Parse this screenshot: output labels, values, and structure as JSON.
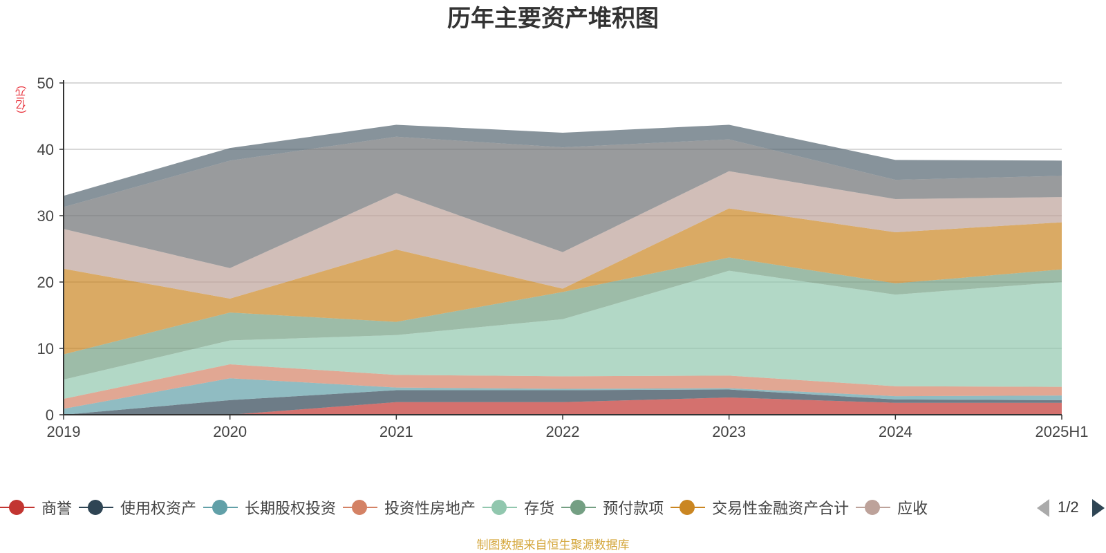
{
  "chart_data": {
    "type": "area",
    "title": "历年主要资产堆积图",
    "unit_label": "(亿元)",
    "categories": [
      "2019",
      "2020",
      "2021",
      "2022",
      "2023",
      "2024",
      "2025H1"
    ],
    "ylim": [
      0,
      50
    ],
    "yticks": [
      0,
      10,
      20,
      30,
      40,
      50
    ],
    "grid": true,
    "stacked": true,
    "series": [
      {
        "name": "商誉",
        "color": "#c23531",
        "values": [
          0,
          0,
          1.9,
          1.9,
          2.6,
          1.8,
          1.8
        ]
      },
      {
        "name": "使用权资产",
        "color": "#2f4554",
        "values": [
          0,
          2.2,
          1.8,
          1.8,
          1.2,
          0.5,
          0.4
        ]
      },
      {
        "name": "长期股权投资",
        "color": "#61a0a8",
        "values": [
          0.9,
          3.3,
          0.4,
          0.2,
          0.2,
          0.5,
          0.7
        ]
      },
      {
        "name": "投资性房地产",
        "color": "#d48265",
        "values": [
          1.5,
          2.1,
          1.9,
          1.9,
          1.9,
          1.5,
          1.3
        ]
      },
      {
        "name": "存货",
        "color": "#91c7ae",
        "values": [
          2.9,
          3.6,
          6.0,
          8.6,
          15.8,
          13.8,
          15.8
        ]
      },
      {
        "name": "预付款项",
        "color": "#749f83",
        "values": [
          3.8,
          4.2,
          2.0,
          4.1,
          2.0,
          1.7,
          1.9
        ]
      },
      {
        "name": "交易性金融资产合计",
        "color": "#ca8622",
        "values": [
          12.9,
          2.1,
          10.9,
          0.5,
          7.4,
          7.7,
          7.1
        ]
      },
      {
        "name": "应收",
        "color": "#bda29a",
        "values": [
          6.0,
          4.6,
          8.5,
          5.5,
          5.6,
          5.0,
          3.8
        ]
      },
      {
        "name": "",
        "color": "#6e7074",
        "values": [
          3.3,
          16.2,
          8.5,
          15.8,
          4.8,
          2.9,
          3.2
        ]
      },
      {
        "name": "",
        "color": "#546570",
        "values": [
          1.7,
          1.9,
          1.8,
          2.2,
          2.2,
          3.0,
          2.3
        ]
      }
    ]
  },
  "legend": {
    "items": [
      {
        "label": "商誉",
        "color": "#c23531"
      },
      {
        "label": "使用权资产",
        "color": "#2f4554"
      },
      {
        "label": "长期股权投资",
        "color": "#61a0a8"
      },
      {
        "label": "投资性房地产",
        "color": "#d48265"
      },
      {
        "label": "存货",
        "color": "#91c7ae"
      },
      {
        "label": "预付款项",
        "color": "#749f83"
      },
      {
        "label": "交易性金融资产合计",
        "color": "#ca8622"
      },
      {
        "label": "应收",
        "color": "#bda29a"
      }
    ],
    "page_indicator": "1/2"
  },
  "source_note": "制图数据来自恒生聚源数据库"
}
